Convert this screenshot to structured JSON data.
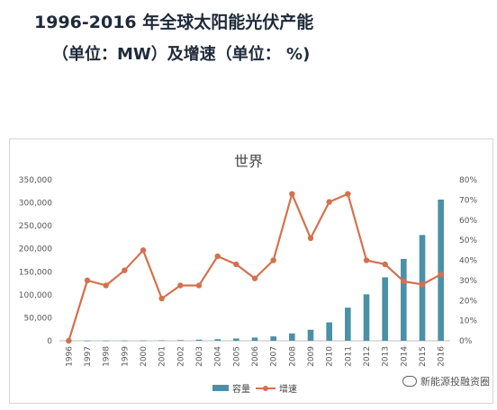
{
  "header": {
    "title": "1996-2016 年全球太阳能光伏产能",
    "subtitle": "（单位：MW）及增速（单位： %)"
  },
  "watermark": {
    "text": "新能源投融资圈",
    "icon": "wechat-icon"
  },
  "colors": {
    "bar": "#4a91a8",
    "line": "#d4714d"
  },
  "chart_data": {
    "type": "bar",
    "title": "世界",
    "categories": [
      "1996",
      "1997",
      "1998",
      "1999",
      "2000",
      "2001",
      "2002",
      "2003",
      "2004",
      "2005",
      "2006",
      "2007",
      "2008",
      "2009",
      "2010",
      "2011",
      "2012",
      "2013",
      "2014",
      "2015",
      "2016"
    ],
    "series": [
      {
        "name": "容量",
        "type": "bar",
        "axis": "left",
        "values": [
          100,
          200,
          300,
          400,
          600,
          1000,
          1500,
          2500,
          3500,
          5000,
          7000,
          9500,
          16000,
          24000,
          40000,
          72000,
          101000,
          138000,
          178000,
          230000,
          307000
        ]
      },
      {
        "name": "增速",
        "type": "line",
        "axis": "right",
        "values": [
          0,
          30,
          27.5,
          35,
          45,
          21,
          27.5,
          27.5,
          42,
          38,
          31,
          40,
          73,
          51,
          69,
          73,
          40,
          38,
          29.5,
          28,
          33
        ]
      }
    ],
    "y_left": {
      "min": 0,
      "max": 350000,
      "ticks": [
        "0",
        "50,000",
        "100,000",
        "150,000",
        "200,000",
        "250,000",
        "300,000",
        "350,000"
      ]
    },
    "y_right": {
      "min": 0,
      "max": 80,
      "ticks": [
        "0%",
        "10%",
        "20%",
        "30%",
        "40%",
        "50%",
        "60%",
        "70%",
        "80%"
      ]
    },
    "grid": false,
    "legend": "bottom"
  }
}
